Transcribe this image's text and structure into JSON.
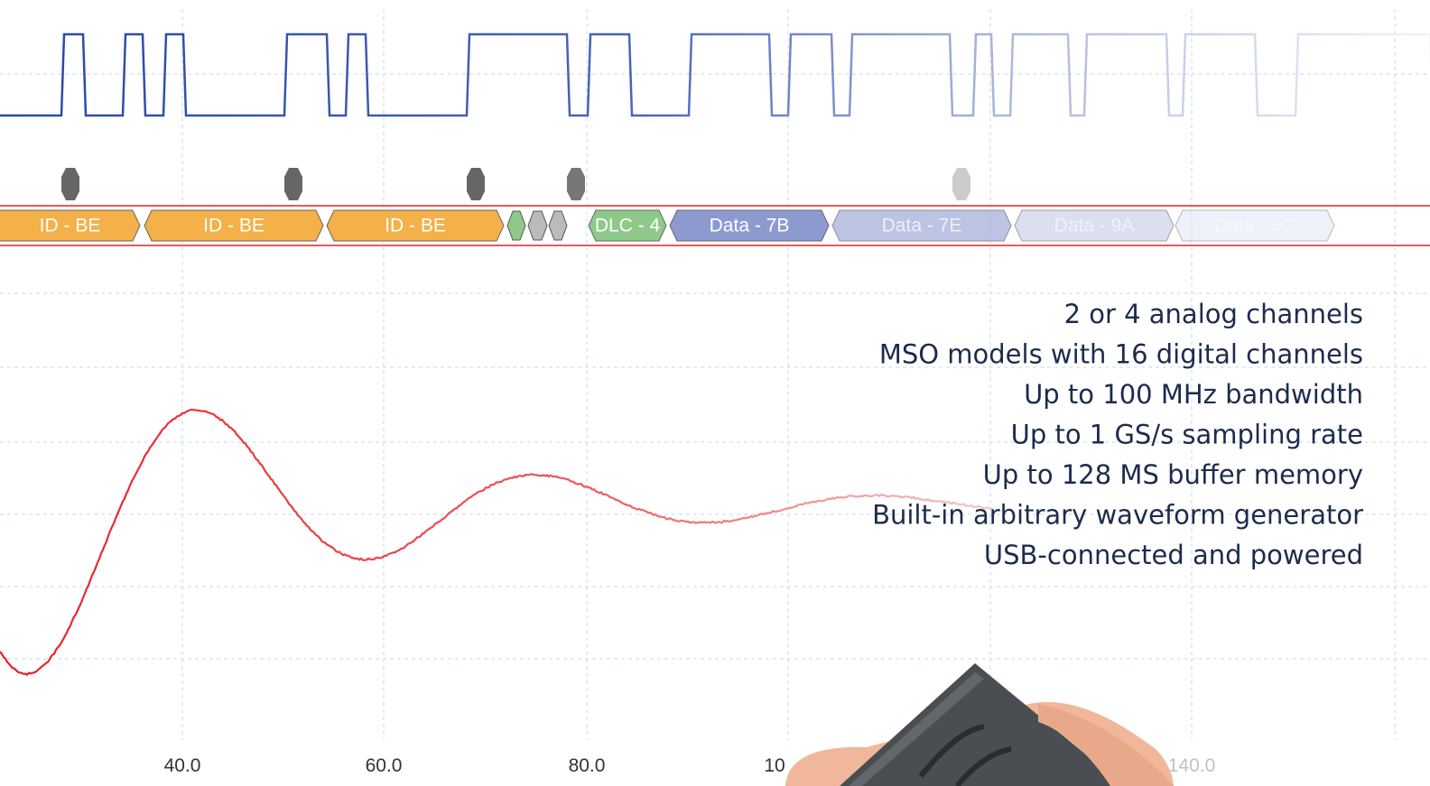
{
  "decode_packets": [
    "ID - BE",
    "ID - BE",
    "ID - BE",
    "DLC - 4",
    "Data - 7B",
    "Data - 7E",
    "Data - 9A",
    "Data - 9C"
  ],
  "axis_labels": [
    "40.0",
    "60.0",
    "80.0",
    "10",
    "140.0"
  ],
  "features": [
    "2 or 4 analog channels",
    "MSO models with 16 digital channels",
    "Up to 100 MHz bandwidth",
    "Up to 1 GS/s sampling rate",
    "Up to 128 MS buffer memory",
    "Built-in arbitrary waveform generator",
    "USB-connected and powered"
  ]
}
